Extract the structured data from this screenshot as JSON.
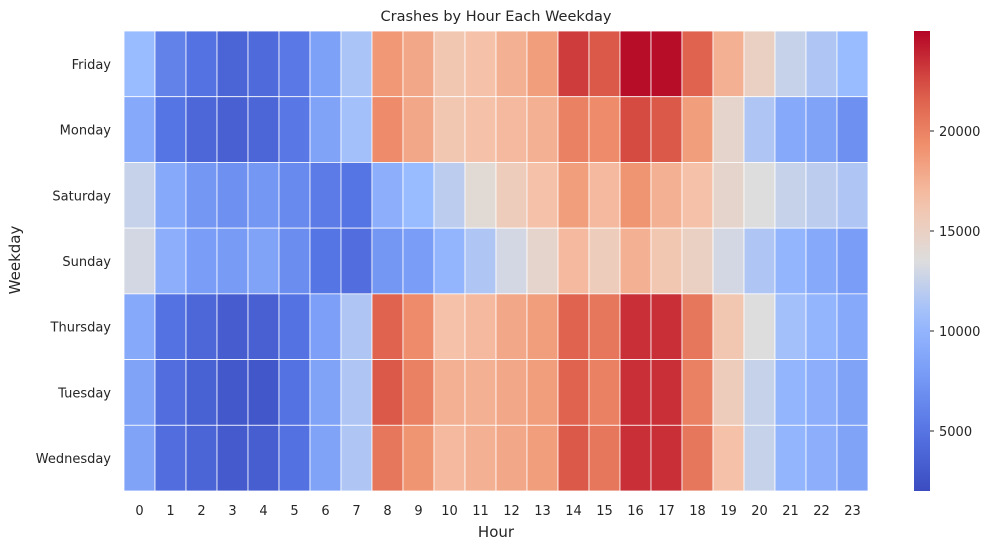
{
  "chart_data": {
    "type": "heatmap",
    "title": "Crashes by Hour Each Weekday",
    "xlabel": "Hour",
    "ylabel": "Weekday",
    "x": [
      "0",
      "1",
      "2",
      "3",
      "4",
      "5",
      "6",
      "7",
      "8",
      "9",
      "10",
      "11",
      "12",
      "13",
      "14",
      "15",
      "16",
      "17",
      "18",
      "19",
      "20",
      "21",
      "22",
      "23"
    ],
    "y": [
      "Friday",
      "Monday",
      "Saturday",
      "Sunday",
      "Thursday",
      "Tuesday",
      "Wednesday"
    ],
    "values": [
      [
        10500,
        6000,
        4800,
        3800,
        4200,
        5300,
        8300,
        11300,
        18800,
        18000,
        16000,
        16500,
        17500,
        18500,
        23000,
        22000,
        24700,
        24700,
        21500,
        17500,
        15000,
        12500,
        11500,
        10500
      ],
      [
        9000,
        5000,
        4000,
        3500,
        3900,
        5200,
        8500,
        11000,
        19500,
        18000,
        16000,
        16500,
        17000,
        17500,
        20000,
        19500,
        22500,
        22000,
        18500,
        14500,
        11500,
        9000,
        8500,
        7000
      ],
      [
        12500,
        9000,
        7500,
        7000,
        7500,
        6500,
        5500,
        5000,
        9500,
        10500,
        12000,
        14000,
        15500,
        16500,
        18500,
        17000,
        19000,
        17500,
        16500,
        14500,
        13500,
        12500,
        12000,
        11500
      ],
      [
        13000,
        9500,
        8000,
        7800,
        8500,
        6800,
        5000,
        4500,
        7500,
        8000,
        10000,
        11500,
        13000,
        14500,
        17000,
        15500,
        17500,
        16000,
        15000,
        13000,
        11500,
        10000,
        9000,
        8000
      ],
      [
        9000,
        4800,
        4000,
        3200,
        3500,
        4800,
        8200,
        11500,
        21500,
        19500,
        16500,
        17000,
        18000,
        18500,
        21500,
        20500,
        23500,
        23500,
        20500,
        16000,
        13500,
        11000,
        10000,
        9000
      ],
      [
        8500,
        4500,
        3600,
        2900,
        2800,
        4800,
        8500,
        11500,
        22000,
        20000,
        17500,
        17500,
        18000,
        18500,
        21500,
        20000,
        23500,
        23500,
        20000,
        15500,
        12500,
        10000,
        9500,
        8500
      ],
      [
        8500,
        4500,
        3800,
        3100,
        3300,
        4700,
        8500,
        11500,
        20500,
        19000,
        17000,
        17500,
        18000,
        18500,
        22000,
        20500,
        23500,
        23500,
        20500,
        16500,
        12500,
        10000,
        9500,
        8500
      ]
    ],
    "colorbar": {
      "min": 2000,
      "max": 25000,
      "ticks": [
        5000,
        10000,
        15000,
        20000
      ],
      "colormap": "coolwarm"
    },
    "grid": false,
    "cell_border_color": "#ffffff",
    "legend": "colorbar-right"
  }
}
